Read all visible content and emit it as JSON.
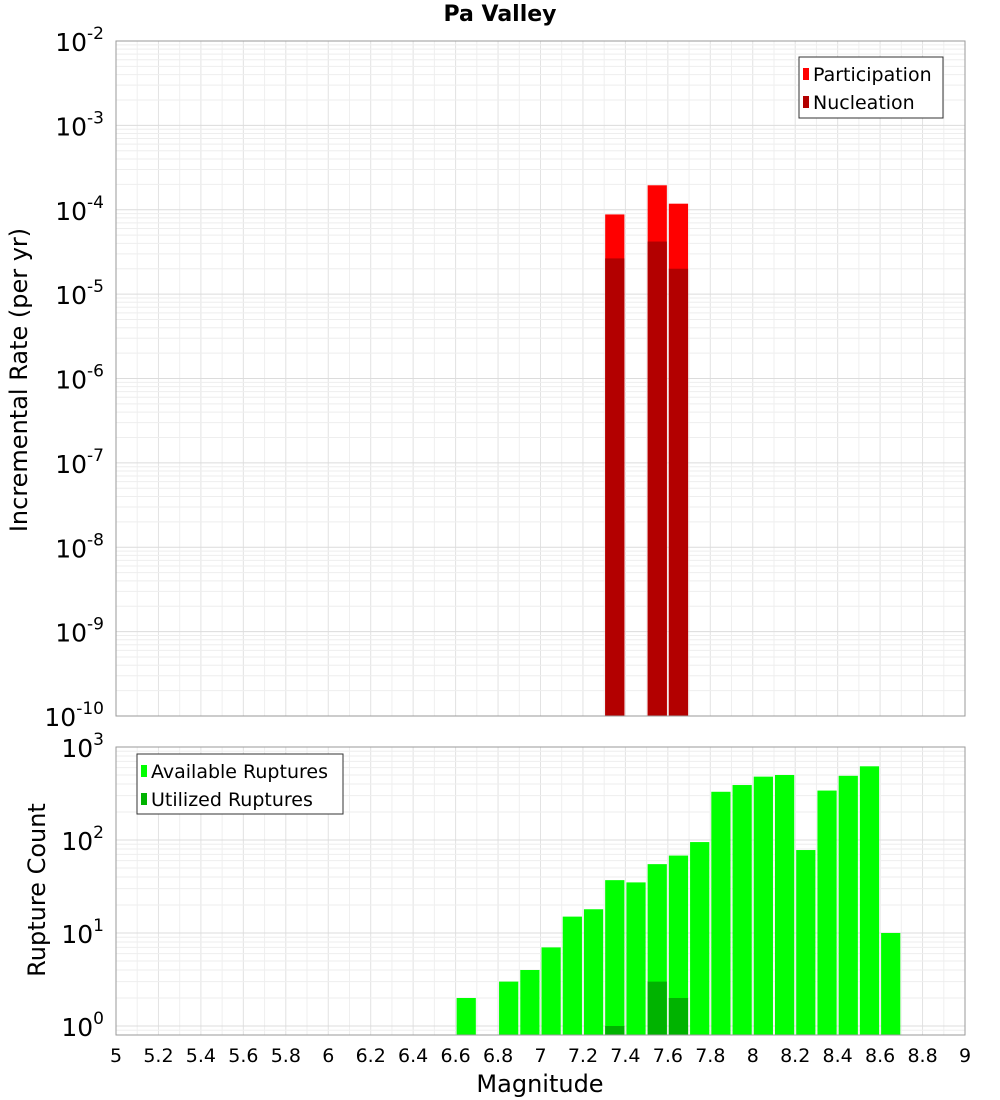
{
  "chart_data": [
    {
      "type": "bar",
      "title": "Pa Valley",
      "xlabel": "",
      "ylabel": "Incremental Rate (per yr)",
      "yscale": "log",
      "ylim": [
        1e-10,
        0.01
      ],
      "xlim": [
        5,
        9
      ],
      "y_tick_labels": [
        {
          "base": "10",
          "exp": "-10",
          "value": 1e-10
        },
        {
          "base": "10",
          "exp": "-9",
          "value": 1e-09
        },
        {
          "base": "10",
          "exp": "-8",
          "value": 1e-08
        },
        {
          "base": "10",
          "exp": "-7",
          "value": 1e-07
        },
        {
          "base": "10",
          "exp": "-6",
          "value": 1e-06
        },
        {
          "base": "10",
          "exp": "-5",
          "value": 1e-05
        },
        {
          "base": "10",
          "exp": "-4",
          "value": 0.0001
        },
        {
          "base": "10",
          "exp": "-3",
          "value": 0.001
        },
        {
          "base": "10",
          "exp": "-2",
          "value": 0.01
        }
      ],
      "grid": true,
      "legend_position": "top-right",
      "series": [
        {
          "name": "Participation",
          "color": "#ff0000",
          "x": [
            7.35,
            7.55,
            7.65
          ],
          "values": [
            8.8e-05,
            0.000195,
            0.000118
          ]
        },
        {
          "name": "Nucleation",
          "color": "#b30000",
          "x": [
            7.35,
            7.55,
            7.65
          ],
          "values": [
            2.65e-05,
            4.2e-05,
            2e-05
          ]
        }
      ]
    },
    {
      "type": "bar",
      "xlabel": "Magnitude",
      "ylabel": "Rupture Count",
      "yscale": "log",
      "ylim": [
        0.8,
        1000
      ],
      "xlim": [
        5,
        9
      ],
      "y_tick_labels": [
        {
          "base": "10",
          "exp": "0",
          "value": 1
        },
        {
          "base": "10",
          "exp": "1",
          "value": 10
        },
        {
          "base": "10",
          "exp": "2",
          "value": 100
        },
        {
          "base": "10",
          "exp": "3",
          "value": 1000
        }
      ],
      "x_tick_labels": [
        "5",
        "5.2",
        "5.4",
        "5.6",
        "5.8",
        "6",
        "6.2",
        "6.4",
        "6.6",
        "6.8",
        "7",
        "7.2",
        "7.4",
        "7.6",
        "7.8",
        "8",
        "8.2",
        "8.4",
        "8.6",
        "8.8",
        "9"
      ],
      "grid": true,
      "legend_position": "top-left",
      "series": [
        {
          "name": "Available Ruptures",
          "color": "#00ff00",
          "x": [
            6.65,
            6.85,
            6.95,
            7.05,
            7.15,
            7.25,
            7.35,
            7.45,
            7.55,
            7.65,
            7.75,
            7.85,
            7.95,
            8.05,
            8.15,
            8.25,
            8.35,
            8.45,
            8.55,
            8.65
          ],
          "values": [
            2,
            3,
            4,
            7,
            15,
            18,
            37,
            35,
            55,
            68,
            95,
            330,
            390,
            480,
            500,
            78,
            340,
            490,
            620,
            10
          ]
        },
        {
          "name": "Utilized Ruptures",
          "color": "#00b300",
          "x": [
            7.35,
            7.55,
            7.65
          ],
          "values": [
            1,
            3,
            2
          ]
        }
      ]
    }
  ]
}
